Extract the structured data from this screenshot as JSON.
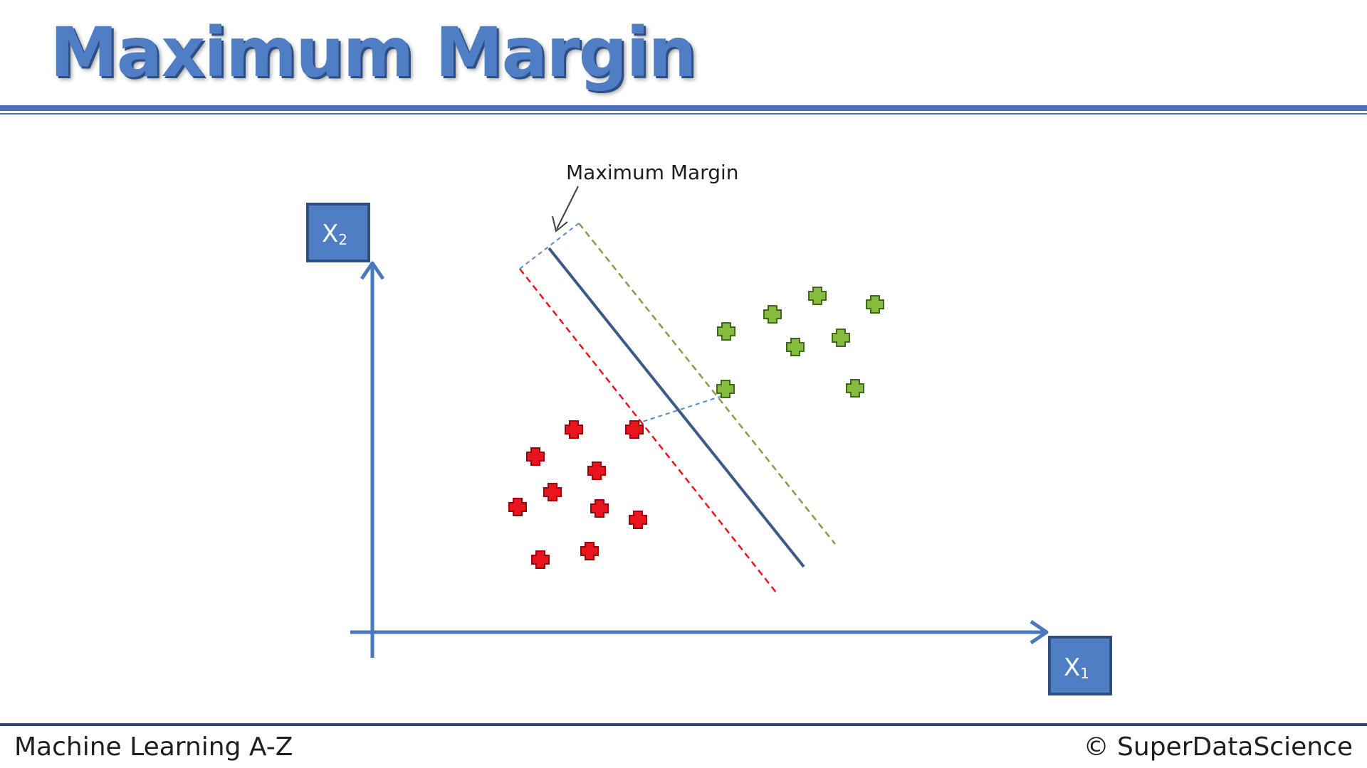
{
  "title": "Maximum Margin",
  "annotation": "Maximum Margin",
  "axes": {
    "y_label": "X",
    "y_label_sub": "2",
    "x_label": "X",
    "x_label_sub": "1"
  },
  "footer": {
    "left": "Machine Learning A-Z",
    "right": "© SuperDataScience"
  },
  "colors": {
    "title": "#4f7ec4",
    "axis": "#4a78be",
    "label_box": "#4f7ec4",
    "hyperplane": "#3a5a8a",
    "class_red": "#e8141e",
    "class_green": "#86bc3e",
    "margin_red": "#e8141e",
    "margin_green": "#8a9a4a",
    "margin_width": "#5b8ac8"
  },
  "icons": {
    "point_red": "red-plus-icon",
    "point_green": "green-plus-icon",
    "arrow": "arrow-icon"
  }
}
